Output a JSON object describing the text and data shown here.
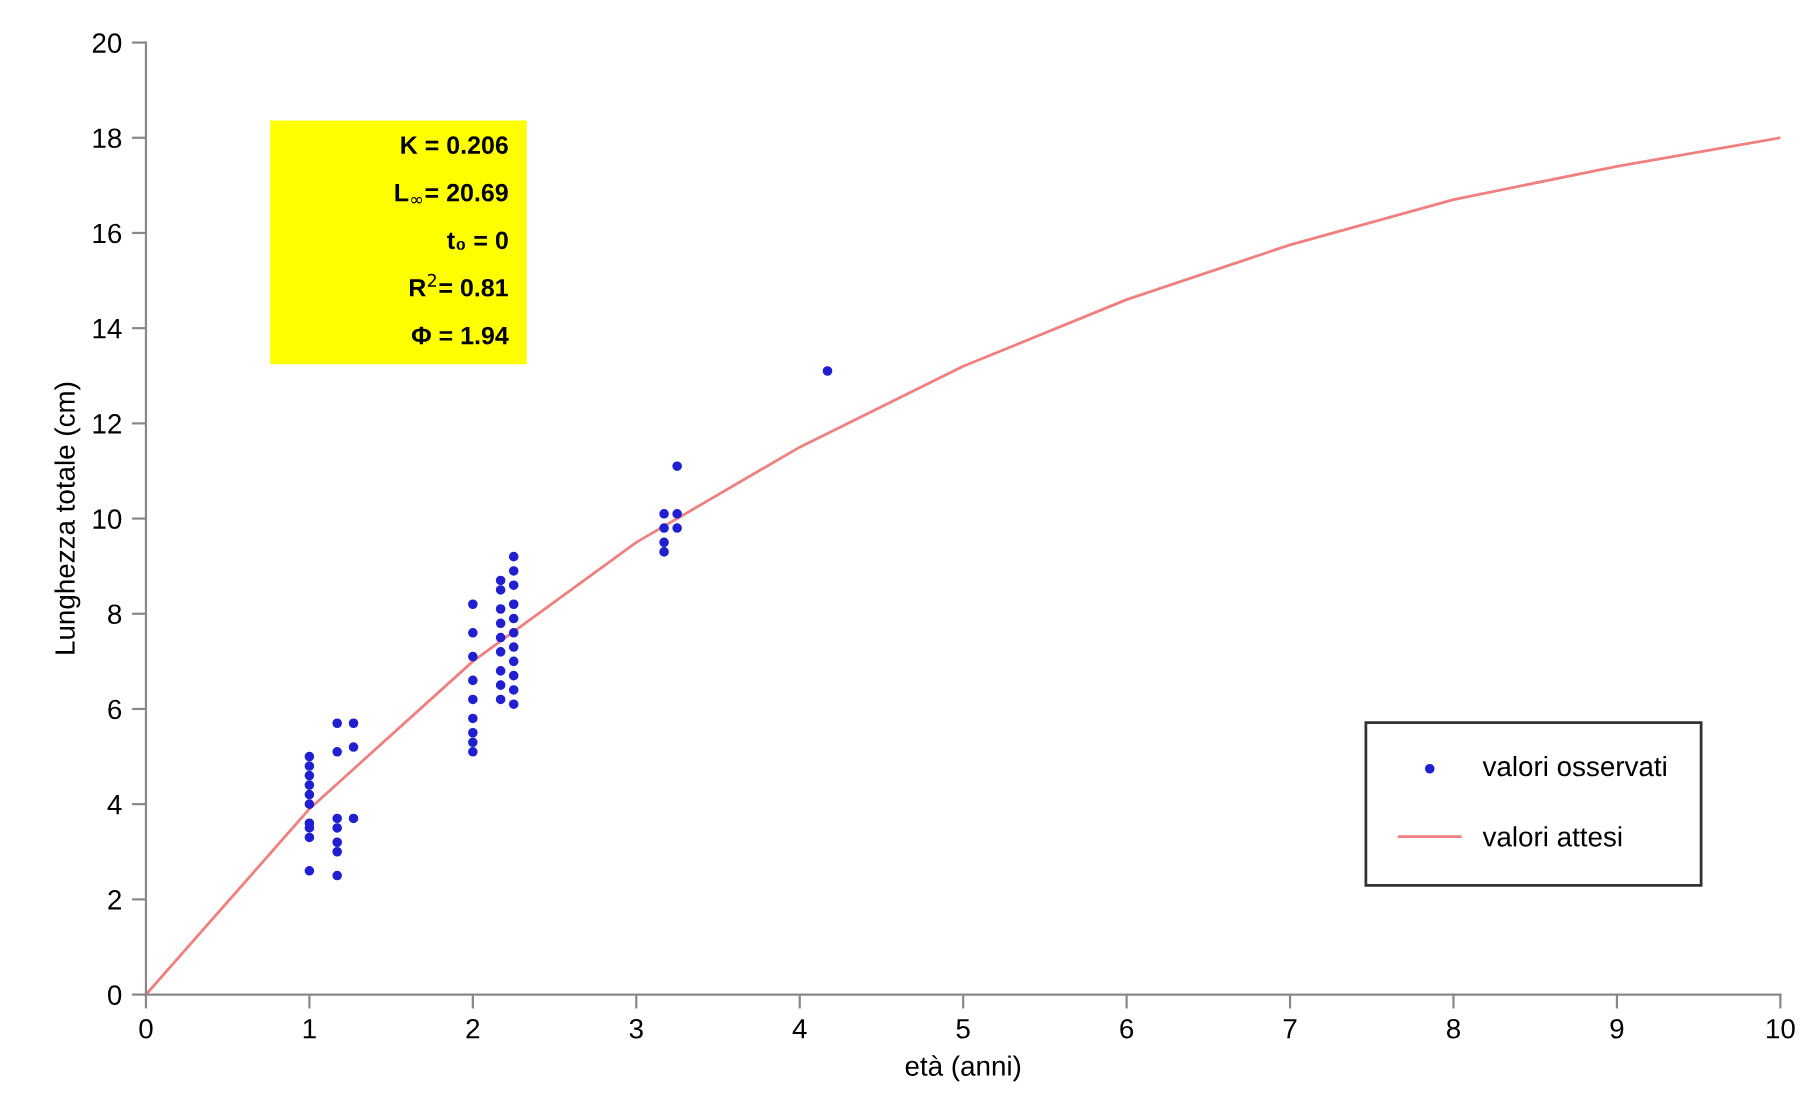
{
  "chart_data": {
    "type": "scatter",
    "xlabel": "età (anni)",
    "ylabel": "Lunghezza totale (cm)",
    "xlim": [
      0,
      10
    ],
    "xticks": [
      0,
      1,
      2,
      3,
      4,
      5,
      6,
      7,
      8,
      9,
      10
    ],
    "ylim": [
      0,
      20
    ],
    "yticks": [
      0,
      2,
      4,
      6,
      8,
      10,
      12,
      14,
      16,
      18,
      20
    ],
    "grid": false,
    "legend": "bottom right",
    "marker": "circle",
    "annotations": [
      "K = 0.206",
      "L$_{∞}$= 20.69",
      "t₀ = 0",
      "R$^{2}$= 0.81",
      "Φ = 1.94"
    ],
    "series": [
      {
        "name": "valori osservati",
        "color": "#2020d0",
        "x": [
          1,
          1,
          1,
          1,
          1,
          1,
          1,
          1,
          1,
          1,
          1.17,
          1.17,
          1.17,
          1.17,
          1.17,
          1.17,
          1.17,
          1.27,
          1.27,
          1.27,
          2,
          2,
          2,
          2,
          2,
          2,
          2,
          2,
          2,
          2.17,
          2.17,
          2.17,
          2.17,
          2.17,
          2.17,
          2.17,
          2.17,
          2.17,
          2.25,
          2.25,
          2.25,
          2.25,
          2.25,
          2.25,
          2.25,
          2.25,
          2.25,
          2.25,
          2.25,
          3.17,
          3.17,
          3.17,
          3.17,
          3.25,
          3.25,
          3.25,
          4.17
        ],
        "values": [
          2.6,
          3.3,
          3.5,
          3.6,
          4.0,
          4.2,
          4.4,
          4.6,
          4.8,
          5.0,
          2.5,
          3.0,
          3.2,
          3.5,
          3.7,
          5.1,
          5.7,
          3.7,
          5.2,
          5.7,
          5.1,
          5.3,
          5.5,
          5.8,
          6.2,
          6.6,
          7.1,
          7.6,
          8.2,
          6.2,
          6.5,
          6.8,
          7.2,
          7.5,
          7.8,
          8.1,
          8.5,
          8.7,
          6.1,
          6.4,
          6.7,
          7.0,
          7.3,
          7.6,
          7.9,
          8.2,
          8.6,
          8.9,
          9.2,
          9.3,
          9.5,
          9.8,
          10.1,
          9.8,
          10.1,
          11.1,
          13.1
        ]
      },
      {
        "name": "valori attesi",
        "type": "line",
        "color": "#f08080",
        "marker": "none",
        "x": [
          0,
          1,
          2,
          3,
          4,
          5,
          6,
          7,
          8,
          9,
          10
        ],
        "values": [
          0,
          3.9,
          7.0,
          9.5,
          11.5,
          13.2,
          14.6,
          15.75,
          16.7,
          17.4,
          18.0
        ]
      }
    ]
  }
}
